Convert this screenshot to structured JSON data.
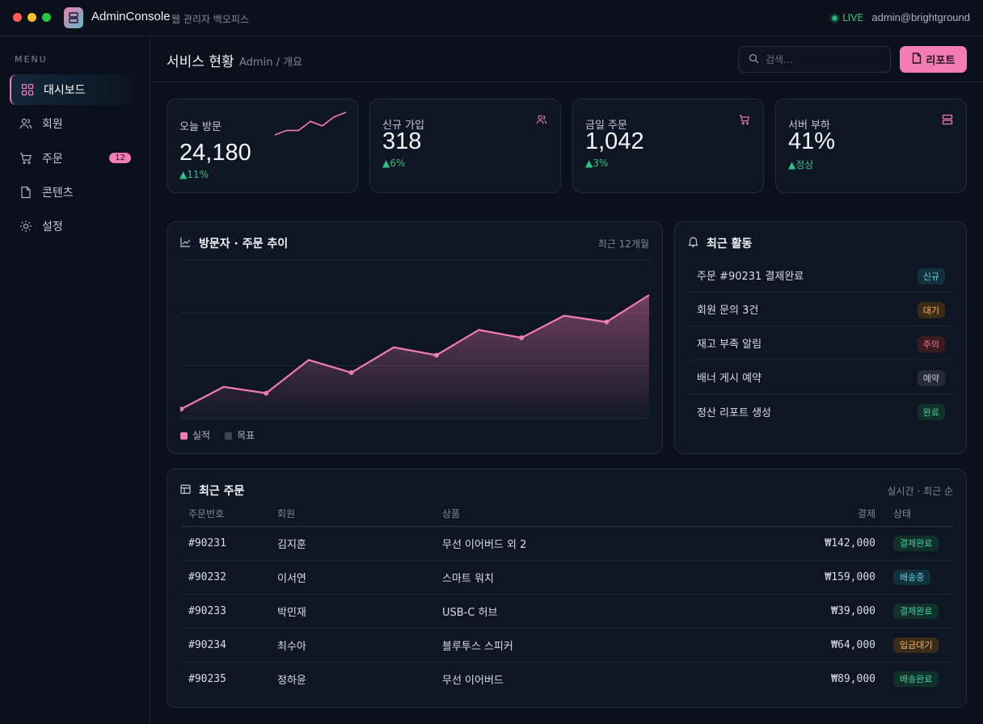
{
  "app": {
    "title": "AdminConsole",
    "subtitle": "웹 관리자 백오피스",
    "live": "LIVE",
    "user": "admin@brightground"
  },
  "sidebar": {
    "menu_label": "MENU",
    "items": [
      {
        "label": "대시보드",
        "icon": "grid-icon",
        "active": true
      },
      {
        "label": "회원",
        "icon": "users-icon"
      },
      {
        "label": "주문",
        "icon": "cart-icon",
        "badge": "12"
      },
      {
        "label": "콘텐츠",
        "icon": "file-icon"
      },
      {
        "label": "설정",
        "icon": "gear-icon"
      }
    ]
  },
  "header": {
    "title": "서비스 현황",
    "breadcrumb": "Admin / 개요",
    "search_placeholder": "검색…",
    "report_label": "리포트"
  },
  "kpis": [
    {
      "title": "오늘 방문",
      "value": "24,180",
      "delta": "▲11%",
      "trend": [
        3,
        5,
        5,
        9,
        7,
        11,
        13
      ]
    },
    {
      "title": "신규 가입",
      "value": "318",
      "delta": "▲6%",
      "icon": "users-icon"
    },
    {
      "title": "금일 주문",
      "value": "1,042",
      "delta": "▲3%",
      "icon": "cart-icon"
    },
    {
      "title": "서버 부하",
      "value": "41%",
      "delta": "▲정상",
      "icon": "server-icon"
    }
  ],
  "trend_chart": {
    "title": "방문자 · 주문 추이",
    "period": "최근 12개월",
    "legend": [
      "실적",
      "목표"
    ]
  },
  "chart_data": {
    "type": "area",
    "title": "방문자 · 주문 추이",
    "x": [
      1,
      2,
      3,
      4,
      5,
      6,
      7,
      8,
      9,
      10,
      11,
      12
    ],
    "series": [
      {
        "name": "실적",
        "values": [
          6,
          20,
          16,
          37,
          29,
          45,
          40,
          56,
          51,
          65,
          61,
          78
        ]
      }
    ],
    "ylim": [
      0,
      100
    ],
    "grid": true,
    "legend": "bottom-left",
    "colors": {
      "실적": "#f47cb3",
      "목표": "#3d4554"
    }
  },
  "activity": {
    "title": "최근 활동",
    "items": [
      {
        "text": "주문 #90231 결제완료",
        "badge": "신규",
        "fg": "#5ad1e6",
        "bg": "#12313a"
      },
      {
        "text": "회원 문의 3건",
        "badge": "대기",
        "fg": "#f5b562",
        "bg": "#3a2c16"
      },
      {
        "text": "재고 부족 알림",
        "badge": "주의",
        "fg": "#f07a8a",
        "bg": "#3a1a22"
      },
      {
        "text": "배너 게시 예약",
        "badge": "예약",
        "fg": "#c5cad4",
        "bg": "#252c38"
      },
      {
        "text": "정산 리포트 생성",
        "badge": "완료",
        "fg": "#34d399",
        "bg": "#12302a"
      }
    ]
  },
  "orders": {
    "title": "최근 주문",
    "meta": "실시간 · 최근 순",
    "columns": [
      "주문번호",
      "회원",
      "상품",
      "결제",
      "상태"
    ],
    "rows": [
      {
        "id": "#90231",
        "member": "김지훈",
        "product": "무선 이어버드 외 2",
        "amount": "₩142,000",
        "status": "결제완료",
        "fg": "#34d399",
        "bg": "#12302a"
      },
      {
        "id": "#90232",
        "member": "이서연",
        "product": "스마트 워치",
        "amount": "₩159,000",
        "status": "배송중",
        "fg": "#5ad1e6",
        "bg": "#12313a"
      },
      {
        "id": "#90233",
        "member": "박민재",
        "product": "USB-C 허브",
        "amount": "₩39,000",
        "status": "결제완료",
        "fg": "#34d399",
        "bg": "#12302a"
      },
      {
        "id": "#90234",
        "member": "최수아",
        "product": "블루투스 스피커",
        "amount": "₩64,000",
        "status": "입금대기",
        "fg": "#f5b562",
        "bg": "#3a2c16"
      },
      {
        "id": "#90235",
        "member": "정하윤",
        "product": "무선 이어버드",
        "amount": "₩89,000",
        "status": "배송완료",
        "fg": "#34d399",
        "bg": "#12302a"
      }
    ]
  },
  "colors": {
    "accent": "#f47cb3",
    "positive": "#2fc285"
  }
}
